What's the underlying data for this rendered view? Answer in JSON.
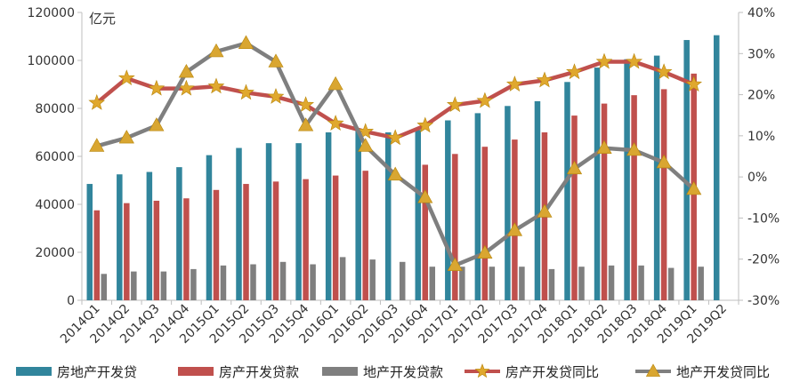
{
  "chart_data": {
    "type": "bar",
    "title": "",
    "ylabel_left": "亿元",
    "y_left_range": [
      0,
      120000
    ],
    "y_left_ticks": [
      "0",
      "20000",
      "40000",
      "60000",
      "80000",
      "100000",
      "120000"
    ],
    "y_right_range": [
      -30,
      40
    ],
    "y_right_ticks": [
      "-30%",
      "-20%",
      "-10%",
      "0%",
      "10%",
      "20%",
      "30%",
      "40%"
    ],
    "categories": [
      "2014Q1",
      "2014Q2",
      "2014Q3",
      "2014Q4",
      "2015Q1",
      "2015Q2",
      "2015Q3",
      "2015Q4",
      "2016Q1",
      "2016Q2",
      "2016Q3",
      "2016Q4",
      "2017Q1",
      "2017Q2",
      "2017Q3",
      "2017Q4",
      "2018Q1",
      "2018Q2",
      "2018Q3",
      "2018Q4",
      "2019Q1",
      "2019Q2"
    ],
    "series": [
      {
        "name": "房地产开发贷",
        "kind": "bar",
        "axis": "left",
        "color": "#31859C",
        "values": [
          48500,
          52500,
          53500,
          55500,
          60500,
          63500,
          65500,
          65500,
          70000,
          71000,
          70000,
          71000,
          75000,
          78000,
          81000,
          83000,
          91000,
          97000,
          100500,
          102000,
          108500,
          110500
        ]
      },
      {
        "name": "房产开发贷款",
        "kind": "bar",
        "axis": "left",
        "color": "#C0504D",
        "values": [
          37500,
          40500,
          41500,
          42500,
          46000,
          48500,
          49500,
          50500,
          52000,
          54000,
          null,
          56500,
          61000,
          64000,
          67000,
          70000,
          77000,
          82000,
          85500,
          88000,
          94500,
          null
        ]
      },
      {
        "name": "地产开发贷款",
        "kind": "bar",
        "axis": "left",
        "color": "#7F7F7F",
        "values": [
          11000,
          12000,
          12000,
          13000,
          14500,
          15000,
          16000,
          15000,
          18000,
          17000,
          16000,
          14000,
          14000,
          14000,
          14000,
          13000,
          14000,
          14500,
          14500,
          13500,
          14000,
          null
        ]
      },
      {
        "name": "房产开发贷同比",
        "kind": "line",
        "axis": "right",
        "color": "#C0504D",
        "marker": "star",
        "values": [
          18,
          24,
          21.5,
          21.5,
          22,
          20.5,
          19.5,
          17.5,
          13,
          11,
          9.5,
          12.5,
          17.5,
          18.5,
          22.5,
          23.5,
          25.5,
          28,
          28,
          25.5,
          22.5,
          null
        ]
      },
      {
        "name": "地产开发贷同比",
        "kind": "line",
        "axis": "right",
        "color": "#7F7F7F",
        "marker": "triangle",
        "values": [
          7.5,
          9.5,
          12.5,
          25.5,
          30.5,
          32.5,
          28,
          12.5,
          22.5,
          7.5,
          0.5,
          -5,
          -21.5,
          -18.5,
          -13,
          -8.5,
          2,
          7,
          6.5,
          3.5,
          -3,
          null
        ]
      }
    ]
  }
}
